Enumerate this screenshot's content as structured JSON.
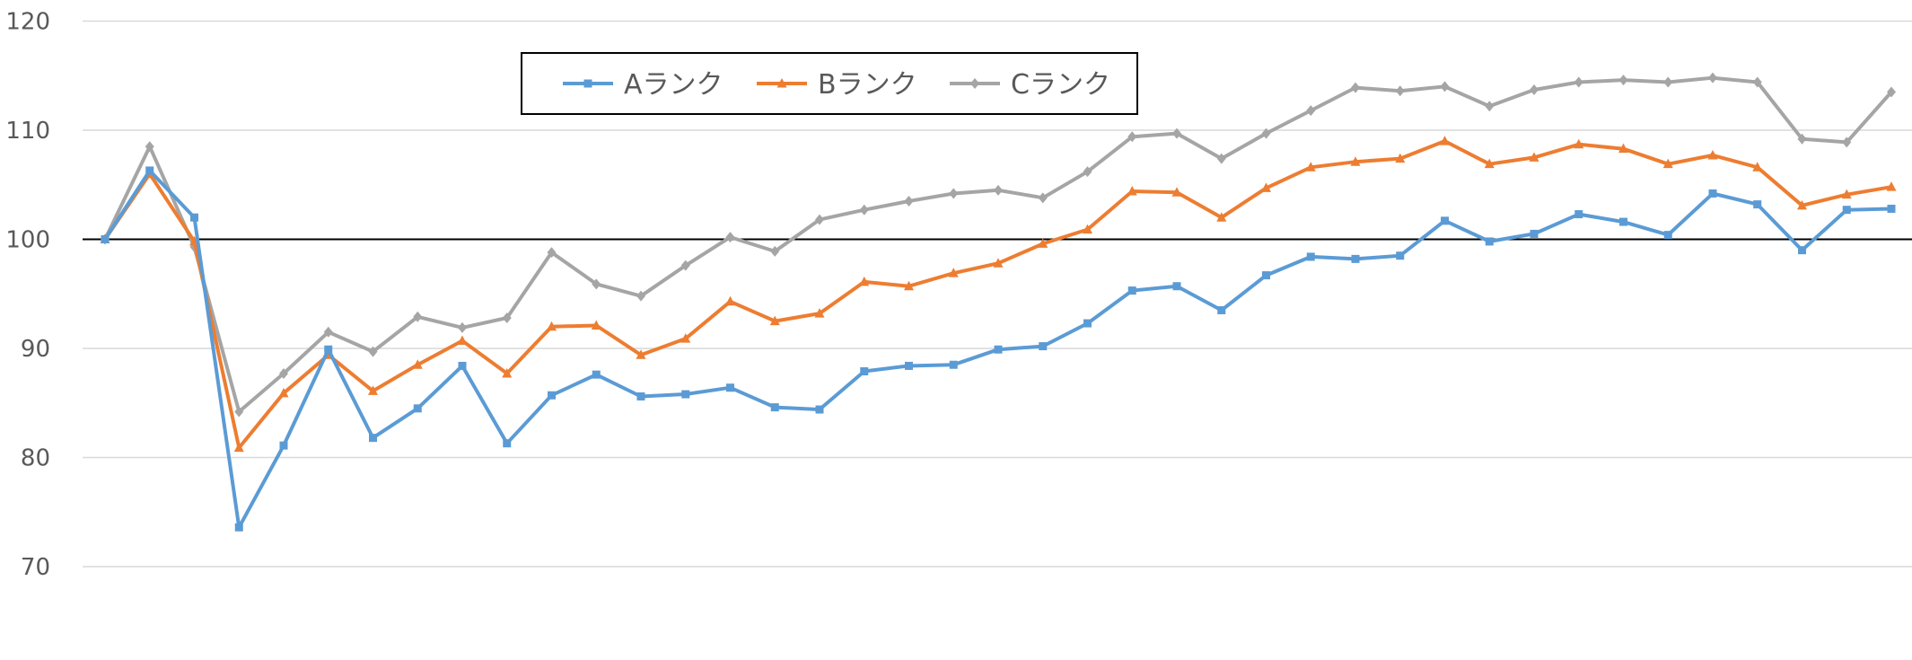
{
  "chart_data": {
    "type": "line",
    "title": "",
    "xlabel": "",
    "ylabel": "",
    "ylim": [
      70,
      120
    ],
    "yticks": [
      70,
      80,
      90,
      100,
      110,
      120
    ],
    "grid": true,
    "reference_line": 100,
    "legend_position": "top-center",
    "x": [
      1,
      2,
      3,
      4,
      5,
      6,
      7,
      8,
      9,
      10,
      11,
      12,
      13,
      14,
      15,
      16,
      17,
      18,
      19,
      20,
      21,
      22,
      23,
      24,
      25,
      26,
      27,
      28,
      29,
      30,
      31,
      32,
      33,
      34,
      35,
      36,
      37,
      38,
      39,
      40,
      41
    ],
    "series": [
      {
        "name": "Aランク",
        "color": "#5B9BD5",
        "marker": "square",
        "values": [
          100,
          106.3,
          102,
          73.6,
          81.1,
          89.9,
          81.8,
          84.5,
          88.4,
          81.3,
          85.7,
          87.6,
          85.6,
          85.8,
          86.4,
          84.6,
          84.4,
          87.9,
          88.4,
          88.5,
          89.9,
          90.2,
          92.3,
          95.3,
          95.7,
          93.5,
          96.7,
          98.4,
          98.2,
          98.5,
          101.7,
          99.8,
          100.5,
          102.3,
          101.6,
          100.4,
          104.2,
          103.2,
          99,
          102.7,
          102.8
        ]
      },
      {
        "name": "Bランク",
        "color": "#ED7D31",
        "marker": "triangle",
        "values": [
          100,
          106,
          99.8,
          80.9,
          85.9,
          89.4,
          86.1,
          88.5,
          90.7,
          87.7,
          92,
          92.1,
          89.4,
          90.9,
          94.3,
          92.5,
          93.2,
          96.1,
          95.7,
          96.9,
          97.8,
          99.6,
          100.9,
          104.4,
          104.3,
          102,
          104.7,
          106.6,
          107.1,
          107.4,
          109,
          106.9,
          107.5,
          108.7,
          108.3,
          106.9,
          107.7,
          106.6,
          103.1,
          104.1,
          104.8
        ]
      },
      {
        "name": "Cランク",
        "color": "#A5A5A5",
        "marker": "diamond",
        "values": [
          100,
          108.5,
          99.3,
          84.2,
          87.7,
          91.5,
          89.7,
          92.9,
          91.9,
          92.8,
          98.8,
          95.9,
          94.8,
          97.6,
          100.2,
          98.9,
          101.8,
          102.7,
          103.5,
          104.2,
          104.5,
          103.8,
          106.2,
          109.4,
          109.7,
          107.4,
          109.7,
          111.8,
          113.9,
          113.6,
          114,
          112.2,
          113.7,
          114.4,
          114.6,
          114.4,
          114.8,
          114.4,
          109.2,
          108.9,
          113.5
        ]
      }
    ]
  },
  "tick_labels": [
    "70",
    "80",
    "90",
    "100",
    "110",
    "120"
  ],
  "legend_labels": [
    "Aランク",
    "Bランク",
    "Cランク"
  ],
  "colors": {
    "grid": "#D9D9D9",
    "reference_line": "#000000",
    "tick_label": "#595959",
    "legend_border": "#000000"
  }
}
